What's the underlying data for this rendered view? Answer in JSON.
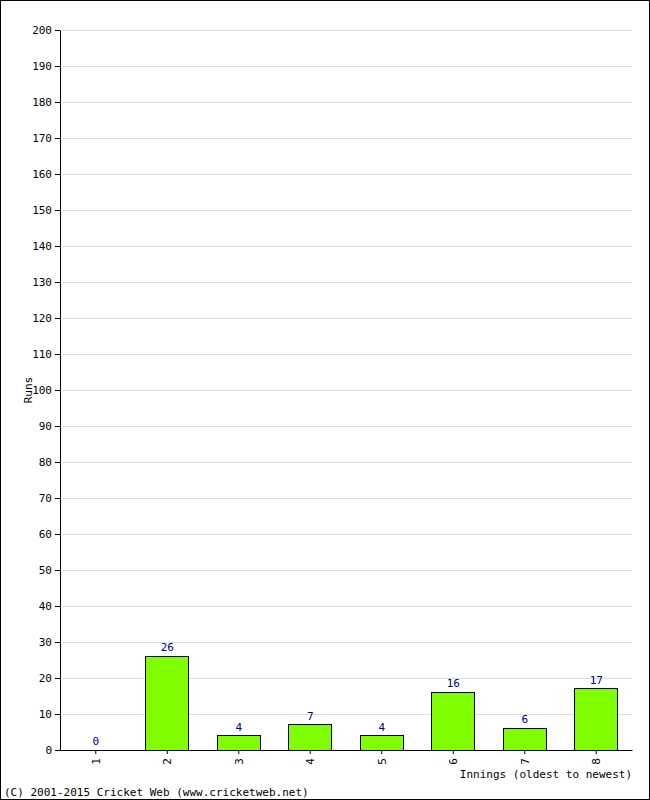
{
  "chart_data": {
    "type": "bar",
    "y_label": "Runs",
    "x_label": "Innings (oldest to newest)",
    "annotations": [
      "(C) 2001-2015 Cricket Web (www.cricketweb.net)"
    ],
    "categories": [
      "1",
      "2",
      "3",
      "4",
      "5",
      "6",
      "7",
      "8"
    ],
    "values": [
      0,
      26,
      4,
      7,
      4,
      16,
      6,
      17
    ],
    "color": "#80ff00",
    "ylim": [
      0,
      200
    ],
    "yticks": [
      0,
      10,
      20,
      30,
      40,
      50,
      60,
      70,
      80,
      90,
      100,
      110,
      120,
      130,
      140,
      150,
      160,
      170,
      180,
      190,
      200
    ],
    "grid": true,
    "data_labels": true
  }
}
